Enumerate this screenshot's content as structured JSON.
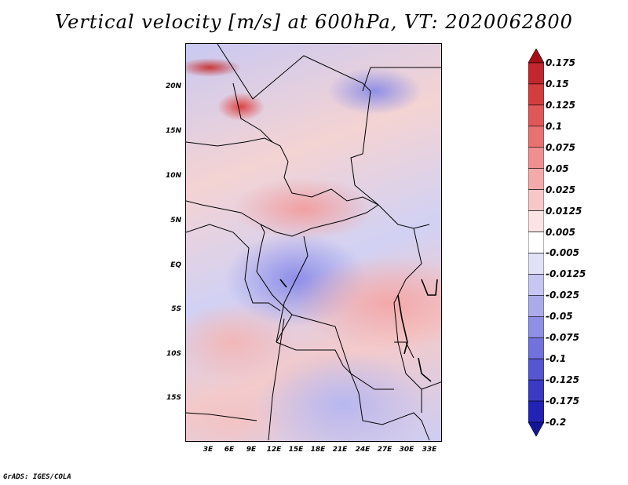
{
  "title": "Vertical velocity [m/s] at 600hPa, VT: 2020062800",
  "credit": "GrADS: IGES/COLA",
  "map": {
    "lat_labels": [
      "20N",
      "15N",
      "10N",
      "5N",
      "EQ",
      "5S",
      "10S",
      "15S"
    ],
    "lon_labels": [
      "3E",
      "6E",
      "9E",
      "12E",
      "15E",
      "18E",
      "21E",
      "24E",
      "27E",
      "30E",
      "33E"
    ]
  },
  "colorbar": {
    "labels": [
      "0.175",
      "0.15",
      "0.125",
      "0.1",
      "0.075",
      "0.05",
      "0.025",
      "0.0125",
      "0.005",
      "-0.005",
      "-0.0125",
      "-0.025",
      "-0.05",
      "-0.075",
      "-0.1",
      "-0.125",
      "-0.175",
      "-0.2"
    ],
    "colors": [
      "#a50f15",
      "#c1272d",
      "#d43d3d",
      "#e05757",
      "#e87272",
      "#ef8f8f",
      "#f4aaaa",
      "#f8c8c8",
      "#fde4e4",
      "#ffffff",
      "#e1e1f8",
      "#c6c6f2",
      "#ababec",
      "#8f8fe5",
      "#7272dc",
      "#5656d0",
      "#3a3ac4",
      "#2222b4",
      "#14149a"
    ]
  }
}
